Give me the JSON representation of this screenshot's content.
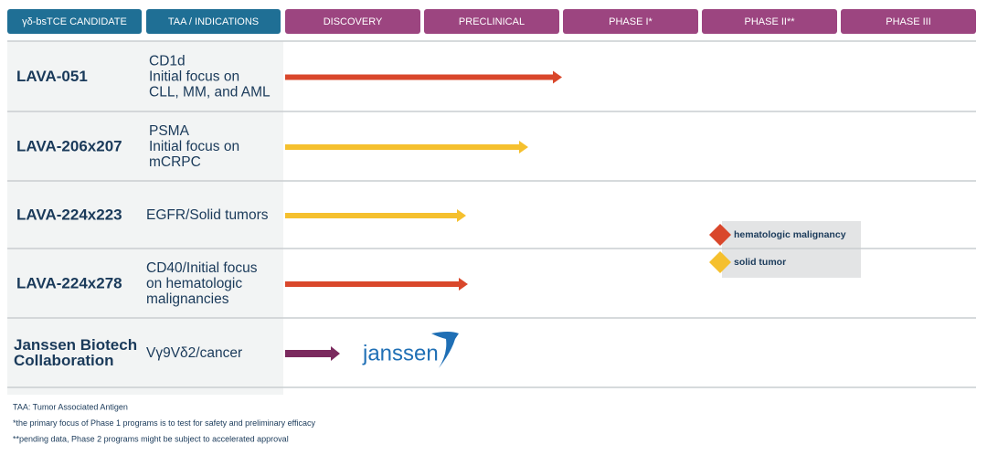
{
  "header": {
    "columns": [
      "γδ-bsTCE CANDIDATE",
      "TAA / INDICATIONS",
      "DISCOVERY",
      "PRECLINICAL",
      "PHASE I*",
      "PHASE II**",
      "PHASE III"
    ]
  },
  "rows": [
    {
      "name": [
        "LAVA-051"
      ],
      "indication": [
        "CD1d",
        "Initial focus on",
        "CLL, MM, and AML"
      ]
    },
    {
      "name": [
        "LAVA-206x207"
      ],
      "indication": [
        "PSMA",
        "Initial focus on",
        "mCRPC"
      ]
    },
    {
      "name": [
        "LAVA-224x223"
      ],
      "indication": [
        "EGFR/Solid tumors"
      ]
    },
    {
      "name": [
        "LAVA-224x278"
      ],
      "indication": [
        "CD40/Initial focus",
        "on hematologic",
        "malignancies"
      ]
    },
    {
      "name": [
        "Janssen Biotech",
        "Collaboration"
      ],
      "indication": [
        "Vγ9Vδ2/cancer"
      ],
      "partner_logo": "janssen"
    }
  ],
  "legend": [
    "hematologic malignancy",
    "solid tumor"
  ],
  "footnotes": [
    "TAA: Tumor Associated Antigen",
    "*the primary focus of Phase 1 programs is to test for safety and preliminary efficacy",
    "**pending data, Phase 2 programs might be subject to accelerated approval"
  ]
}
